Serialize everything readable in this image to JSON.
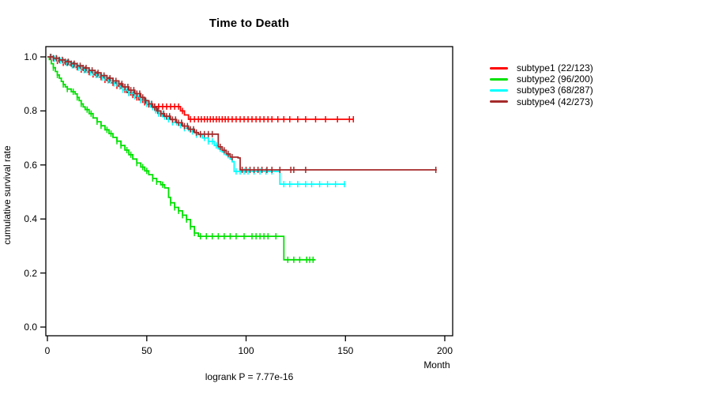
{
  "title": "Time to Death",
  "annotation": "logrank P = 7.77e-16",
  "axes": {
    "x": {
      "label": "Month",
      "tick_labels": [
        "0",
        "50",
        "100",
        "150",
        "200"
      ],
      "tick_values": [
        0,
        50,
        100,
        150,
        200
      ]
    },
    "y": {
      "label": "cumulative survival rate",
      "tick_labels": [
        "0.0",
        "0.2",
        "0.4",
        "0.6",
        "0.8",
        "1.0"
      ],
      "tick_values": [
        0,
        0.2,
        0.4,
        0.6,
        0.8,
        1
      ]
    }
  },
  "legend": {
    "items": [
      {
        "label": "subtype1 (22/123)",
        "color": "#ff0000"
      },
      {
        "label": "subtype2 (96/200)",
        "color": "#00e100"
      },
      {
        "label": "subtype3 (68/287)",
        "color": "#00ffff"
      },
      {
        "label": "subtype4 (42/273)",
        "color": "#a52a2a"
      }
    ]
  },
  "chart_data": {
    "type": "line",
    "variant": "kaplan-meier-step",
    "title": "Time to Death",
    "xlabel": "Month",
    "ylabel": "cumulative survival rate",
    "xlim": [
      0,
      200
    ],
    "ylim": [
      0,
      1
    ],
    "x_ticks": [
      0,
      50,
      100,
      150,
      200
    ],
    "y_ticks": [
      0,
      0.2,
      0.4,
      0.6,
      0.8,
      1
    ],
    "grid": false,
    "legend_position": "right-outside",
    "annotation": "logrank P = 7.77e-16",
    "series": [
      {
        "name": "subtype1",
        "label": "subtype1 (22/123)",
        "events": 22,
        "n": 123,
        "color": "#ff0000",
        "points": [
          [
            0,
            1.0
          ],
          [
            3,
            0.992
          ],
          [
            5,
            0.985
          ],
          [
            8,
            0.978
          ],
          [
            11,
            0.97
          ],
          [
            14,
            0.962
          ],
          [
            17,
            0.953
          ],
          [
            20,
            0.944
          ],
          [
            23,
            0.935
          ],
          [
            26,
            0.925
          ],
          [
            29,
            0.915
          ],
          [
            32,
            0.904
          ],
          [
            35,
            0.893
          ],
          [
            38,
            0.878
          ],
          [
            40,
            0.868
          ],
          [
            42,
            0.859
          ],
          [
            44,
            0.85
          ],
          [
            46,
            0.841
          ],
          [
            48,
            0.832
          ],
          [
            50,
            0.824
          ],
          [
            53,
            0.816
          ],
          [
            67,
            0.8
          ],
          [
            69,
            0.785
          ],
          [
            71,
            0.769
          ],
          [
            154,
            0.769
          ]
        ],
        "censor_months": [
          5,
          8,
          10,
          13,
          15,
          17,
          19,
          21,
          23,
          25,
          27,
          29,
          31,
          33,
          35,
          37,
          39,
          41,
          43,
          45,
          47,
          49,
          51,
          54,
          56,
          58,
          60,
          62,
          64,
          66,
          68,
          72,
          74,
          76,
          77.5,
          79,
          80.5,
          82,
          83.5,
          85,
          86.5,
          88,
          89.5,
          91,
          93,
          95,
          97,
          99,
          101,
          103,
          105,
          107,
          109,
          111,
          113,
          116,
          119,
          122,
          126,
          130,
          135,
          140,
          146,
          152,
          154
        ]
      },
      {
        "name": "subtype2",
        "label": "subtype2 (96/200)",
        "events": 96,
        "n": 200,
        "color": "#00e100",
        "points": [
          [
            0,
            1.0
          ],
          [
            1,
            0.99
          ],
          [
            2,
            0.975
          ],
          [
            3,
            0.96
          ],
          [
            4,
            0.946
          ],
          [
            5,
            0.933
          ],
          [
            6,
            0.921
          ],
          [
            7,
            0.909
          ],
          [
            8,
            0.898
          ],
          [
            9,
            0.889
          ],
          [
            10,
            0.881
          ],
          [
            12,
            0.871
          ],
          [
            14,
            0.863
          ],
          [
            15,
            0.85
          ],
          [
            16,
            0.838
          ],
          [
            17,
            0.826
          ],
          [
            18,
            0.815
          ],
          [
            19,
            0.805
          ],
          [
            21,
            0.79
          ],
          [
            23,
            0.774
          ],
          [
            25,
            0.76
          ],
          [
            27,
            0.745
          ],
          [
            29,
            0.73
          ],
          [
            31,
            0.716
          ],
          [
            33,
            0.702
          ],
          [
            35,
            0.688
          ],
          [
            37,
            0.672
          ],
          [
            39,
            0.655
          ],
          [
            41,
            0.638
          ],
          [
            43,
            0.622
          ],
          [
            45,
            0.607
          ],
          [
            47,
            0.592
          ],
          [
            49,
            0.578
          ],
          [
            51,
            0.564
          ],
          [
            53,
            0.55
          ],
          [
            55,
            0.538
          ],
          [
            57,
            0.527
          ],
          [
            59,
            0.515
          ],
          [
            61,
            0.48
          ],
          [
            62,
            0.46
          ],
          [
            64,
            0.443
          ],
          [
            66,
            0.43
          ],
          [
            68,
            0.414
          ],
          [
            70,
            0.398
          ],
          [
            72,
            0.372
          ],
          [
            74,
            0.348
          ],
          [
            76,
            0.336
          ],
          [
            118.5,
            0.336
          ],
          [
            119,
            0.249
          ],
          [
            135,
            0.249
          ]
        ],
        "censor_months": [
          3,
          5,
          8,
          10,
          13,
          15,
          17,
          20,
          22,
          25,
          27,
          30,
          32,
          35,
          37,
          40,
          42,
          45,
          48,
          50,
          53,
          55,
          58,
          62,
          64,
          66,
          68,
          70,
          72,
          74,
          77,
          80,
          83,
          86,
          89,
          92,
          95,
          99,
          103,
          105,
          107,
          109,
          111,
          115,
          121,
          124,
          127,
          130.5,
          132,
          133.7
        ]
      },
      {
        "name": "subtype3",
        "label": "subtype3 (68/287)",
        "events": 68,
        "n": 287,
        "color": "#00ffff",
        "points": [
          [
            0,
            1.0
          ],
          [
            3,
            0.993
          ],
          [
            6,
            0.986
          ],
          [
            9,
            0.978
          ],
          [
            12,
            0.969
          ],
          [
            15,
            0.96
          ],
          [
            18,
            0.951
          ],
          [
            21,
            0.942
          ],
          [
            24,
            0.933
          ],
          [
            27,
            0.923
          ],
          [
            30,
            0.913
          ],
          [
            33,
            0.902
          ],
          [
            36,
            0.89
          ],
          [
            38,
            0.878
          ],
          [
            41,
            0.866
          ],
          [
            44,
            0.854
          ],
          [
            47,
            0.84
          ],
          [
            50,
            0.826
          ],
          [
            52,
            0.814
          ],
          [
            54,
            0.802
          ],
          [
            56,
            0.79
          ],
          [
            58,
            0.779
          ],
          [
            60,
            0.769
          ],
          [
            63,
            0.758
          ],
          [
            66,
            0.747
          ],
          [
            69,
            0.736
          ],
          [
            72,
            0.724
          ],
          [
            75,
            0.712
          ],
          [
            78,
            0.7
          ],
          [
            81,
            0.687
          ],
          [
            84,
            0.672
          ],
          [
            86,
            0.66
          ],
          [
            88,
            0.648
          ],
          [
            90,
            0.636
          ],
          [
            92,
            0.622
          ],
          [
            93,
            0.612
          ],
          [
            94,
            0.576
          ],
          [
            116,
            0.576
          ],
          [
            117,
            0.529
          ],
          [
            150,
            0.529
          ]
        ],
        "censor_months": [
          2,
          3.5,
          5,
          6.5,
          8,
          9.5,
          11,
          12.5,
          14,
          15.5,
          17,
          18.5,
          20,
          21.5,
          23,
          24.5,
          26,
          27.5,
          29,
          30.5,
          32,
          33.5,
          35,
          36.5,
          38,
          39.5,
          41,
          42.5,
          44,
          45.5,
          47,
          48.5,
          50,
          51.5,
          53,
          54.5,
          56,
          57.5,
          59,
          61,
          63,
          65,
          67,
          69,
          71,
          73,
          75,
          77,
          79,
          81,
          83,
          85,
          87,
          89,
          91,
          95,
          97,
          99,
          101,
          104,
          107,
          110,
          113,
          119,
          122,
          126,
          130,
          133,
          137,
          141,
          145,
          149.5
        ]
      },
      {
        "name": "subtype4",
        "label": "subtype4 (42/273)",
        "events": 42,
        "n": 273,
        "color": "#a52a2a",
        "points": [
          [
            0,
            1.0
          ],
          [
            3,
            0.995
          ],
          [
            6,
            0.989
          ],
          [
            9,
            0.982
          ],
          [
            12,
            0.975
          ],
          [
            15,
            0.967
          ],
          [
            18,
            0.959
          ],
          [
            21,
            0.95
          ],
          [
            24,
            0.941
          ],
          [
            27,
            0.931
          ],
          [
            30,
            0.921
          ],
          [
            33,
            0.911
          ],
          [
            36,
            0.9
          ],
          [
            38,
            0.889
          ],
          [
            41,
            0.877
          ],
          [
            44,
            0.864
          ],
          [
            47,
            0.85
          ],
          [
            49,
            0.838
          ],
          [
            51,
            0.826
          ],
          [
            53,
            0.813
          ],
          [
            55,
            0.8
          ],
          [
            57,
            0.79
          ],
          [
            59,
            0.78
          ],
          [
            62,
            0.768
          ],
          [
            65,
            0.756
          ],
          [
            68,
            0.744
          ],
          [
            71,
            0.732
          ],
          [
            74,
            0.72
          ],
          [
            76,
            0.714
          ],
          [
            85,
            0.714
          ],
          [
            86,
            0.667
          ],
          [
            88,
            0.654
          ],
          [
            90,
            0.641
          ],
          [
            92,
            0.629
          ],
          [
            96,
            0.626
          ],
          [
            97,
            0.582
          ],
          [
            196,
            0.582
          ]
        ],
        "censor_months": [
          1.5,
          3,
          4.5,
          6,
          7.5,
          9,
          10.5,
          12,
          13.5,
          15,
          16.5,
          18,
          19.5,
          21,
          22.5,
          24,
          25.5,
          27,
          28.5,
          30,
          31.5,
          33,
          34.5,
          36,
          37.5,
          39,
          40.5,
          42,
          43.5,
          45,
          46.5,
          48,
          49.5,
          51,
          52.5,
          54,
          55.5,
          57,
          58.5,
          60,
          61.5,
          63,
          64.5,
          66,
          67.5,
          69,
          70.5,
          72,
          73.5,
          75,
          77,
          79,
          81,
          83,
          87,
          89,
          91,
          93,
          98,
          100,
          102,
          104,
          106,
          108,
          110.5,
          113,
          117,
          122.5,
          124,
          130,
          195.5
        ]
      }
    ]
  }
}
